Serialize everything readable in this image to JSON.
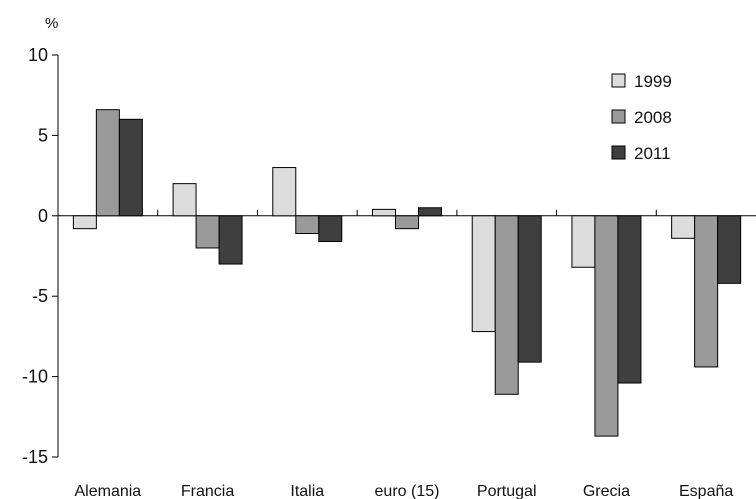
{
  "chart_data": {
    "type": "bar",
    "unit_label": "%",
    "categories": [
      "Alemania",
      "Francia",
      "Italia",
      "euro (15)",
      "Portugal",
      "Grecia",
      "España"
    ],
    "series": [
      {
        "name": "1999",
        "color": "#dcdcdc",
        "values": [
          -0.8,
          2.0,
          3.0,
          0.4,
          -7.2,
          -3.2,
          -1.4
        ]
      },
      {
        "name": "2008",
        "color": "#9a9a9a",
        "values": [
          6.6,
          -2.0,
          -1.1,
          -0.8,
          -11.1,
          -13.7,
          -9.4
        ]
      },
      {
        "name": "2011",
        "color": "#3f3f3f",
        "values": [
          6.0,
          -3.0,
          -1.6,
          0.5,
          -9.1,
          -10.4,
          -4.2
        ]
      }
    ],
    "ylim": [
      -15,
      10
    ],
    "yticks": [
      10,
      5,
      0,
      -5,
      -10,
      -15
    ],
    "legend_position": "top-right",
    "grid": false
  }
}
